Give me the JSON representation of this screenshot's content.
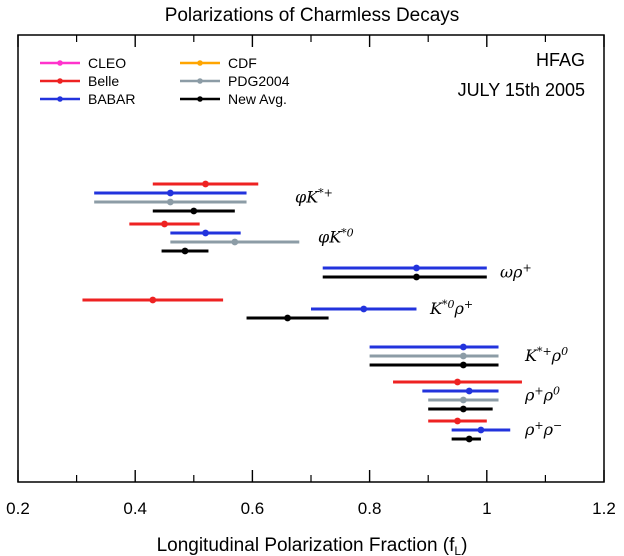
{
  "chart_data": {
    "type": "errorbar",
    "title": "Polarizations of Charmless Decays",
    "xlabel": "Longitudinal Polarization Fraction (f",
    "xlabel_sub": "L",
    "xlabel_tail": ")",
    "xlim": [
      0.2,
      1.2
    ],
    "xticks": [
      "0.2",
      "0.4",
      "0.6",
      "0.8",
      "1",
      "1.2"
    ],
    "annotation": {
      "line1": "HFAG",
      "line2": "JULY 15th 2005"
    },
    "legend": [
      {
        "name": "CLEO",
        "color": "#ff33cc"
      },
      {
        "name": "Belle",
        "color": "#ee2222"
      },
      {
        "name": "BABAR",
        "color": "#2233dd"
      },
      {
        "name": "CDF",
        "color": "#ffa500"
      },
      {
        "name": "PDG2004",
        "color": "#8c9ca6"
      },
      {
        "name": "New Avg.",
        "color": "#000000"
      }
    ],
    "channels": [
      {
        "label": "φK*+",
        "points": [
          {
            "source": "Belle",
            "center": 0.52,
            "low": 0.43,
            "high": 0.61
          },
          {
            "source": "BABAR",
            "center": 0.46,
            "low": 0.33,
            "high": 0.59
          },
          {
            "source": "PDG2004",
            "center": 0.46,
            "low": 0.33,
            "high": 0.59
          },
          {
            "source": "New Avg.",
            "center": 0.5,
            "low": 0.43,
            "high": 0.57
          }
        ]
      },
      {
        "label": "φK*0",
        "points": [
          {
            "source": "Belle",
            "center": 0.45,
            "low": 0.39,
            "high": 0.51
          },
          {
            "source": "BABAR",
            "center": 0.52,
            "low": 0.46,
            "high": 0.58
          },
          {
            "source": "PDG2004",
            "center": 0.57,
            "low": 0.46,
            "high": 0.68
          },
          {
            "source": "New Avg.",
            "center": 0.485,
            "low": 0.445,
            "high": 0.525
          }
        ]
      },
      {
        "label": "ωρ+",
        "points": [
          {
            "source": "BABAR",
            "center": 0.88,
            "low": 0.72,
            "high": 1.0
          },
          {
            "source": "New Avg.",
            "center": 0.88,
            "low": 0.72,
            "high": 1.0
          }
        ]
      },
      {
        "label": "K*0ρ+",
        "points": [
          {
            "source": "Belle",
            "center": 0.43,
            "low": 0.31,
            "high": 0.55
          },
          {
            "source": "BABAR",
            "center": 0.79,
            "low": 0.7,
            "high": 0.88
          },
          {
            "source": "New Avg.",
            "center": 0.66,
            "low": 0.59,
            "high": 0.73
          }
        ]
      },
      {
        "label": "K*+ρ0",
        "points": [
          {
            "source": "BABAR",
            "center": 0.96,
            "low": 0.8,
            "high": 1.02
          },
          {
            "source": "PDG2004",
            "center": 0.96,
            "low": 0.8,
            "high": 1.02
          },
          {
            "source": "New Avg.",
            "center": 0.96,
            "low": 0.8,
            "high": 1.02
          }
        ]
      },
      {
        "label": "ρ+ρ0",
        "points": [
          {
            "source": "Belle",
            "center": 0.95,
            "low": 0.84,
            "high": 1.06
          },
          {
            "source": "BABAR",
            "center": 0.97,
            "low": 0.89,
            "high": 1.02
          },
          {
            "source": "PDG2004",
            "center": 0.96,
            "low": 0.9,
            "high": 1.02
          },
          {
            "source": "New Avg.",
            "center": 0.96,
            "low": 0.9,
            "high": 1.01
          }
        ]
      },
      {
        "label": "ρ+ρ−",
        "points": [
          {
            "source": "Belle",
            "center": 0.95,
            "low": 0.9,
            "high": 1.0
          },
          {
            "source": "BABAR",
            "center": 0.99,
            "low": 0.94,
            "high": 1.04
          },
          {
            "source": "New Avg.",
            "center": 0.97,
            "low": 0.94,
            "high": 0.99
          }
        ]
      }
    ]
  }
}
